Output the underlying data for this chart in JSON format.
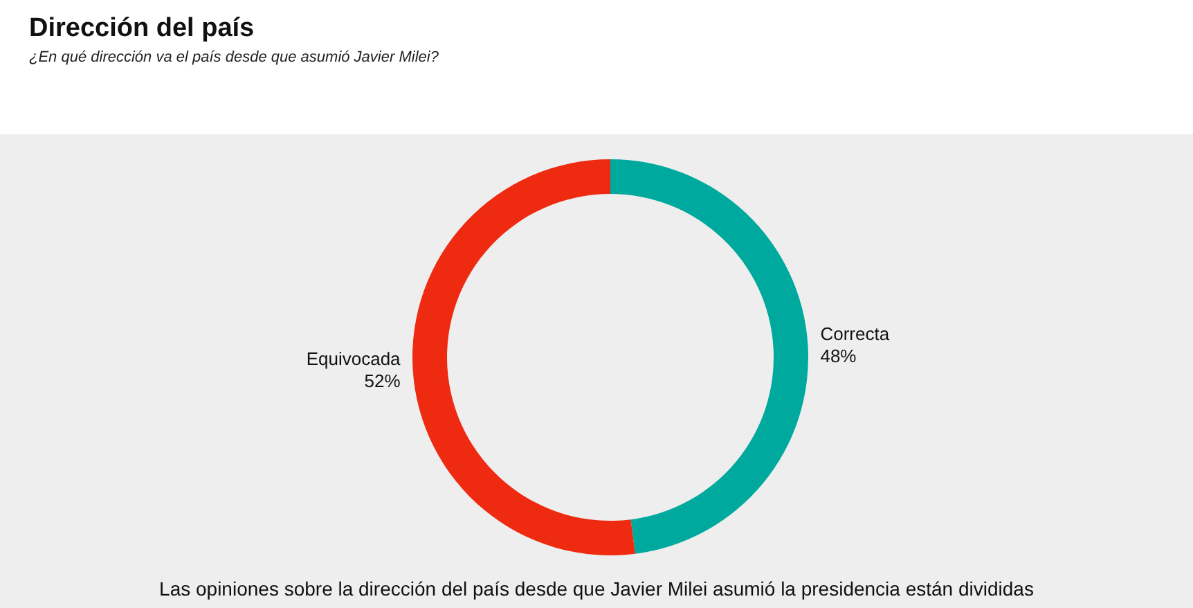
{
  "chart_data": {
    "type": "donut",
    "title": "Dirección del país",
    "subtitle": "¿En qué dirección va el país desde que asumió Javier Milei?",
    "categories": [
      "Correcta",
      "Equivocada"
    ],
    "values": [
      48,
      52
    ],
    "value_labels": [
      "48%",
      "52%"
    ],
    "colors": [
      "#00a99d",
      "#ee2a10"
    ],
    "legend": false,
    "annotations": [
      "Las opiniones sobre la dirección del país desde que Javier Milei asumió la presidencia están divididas"
    ]
  }
}
